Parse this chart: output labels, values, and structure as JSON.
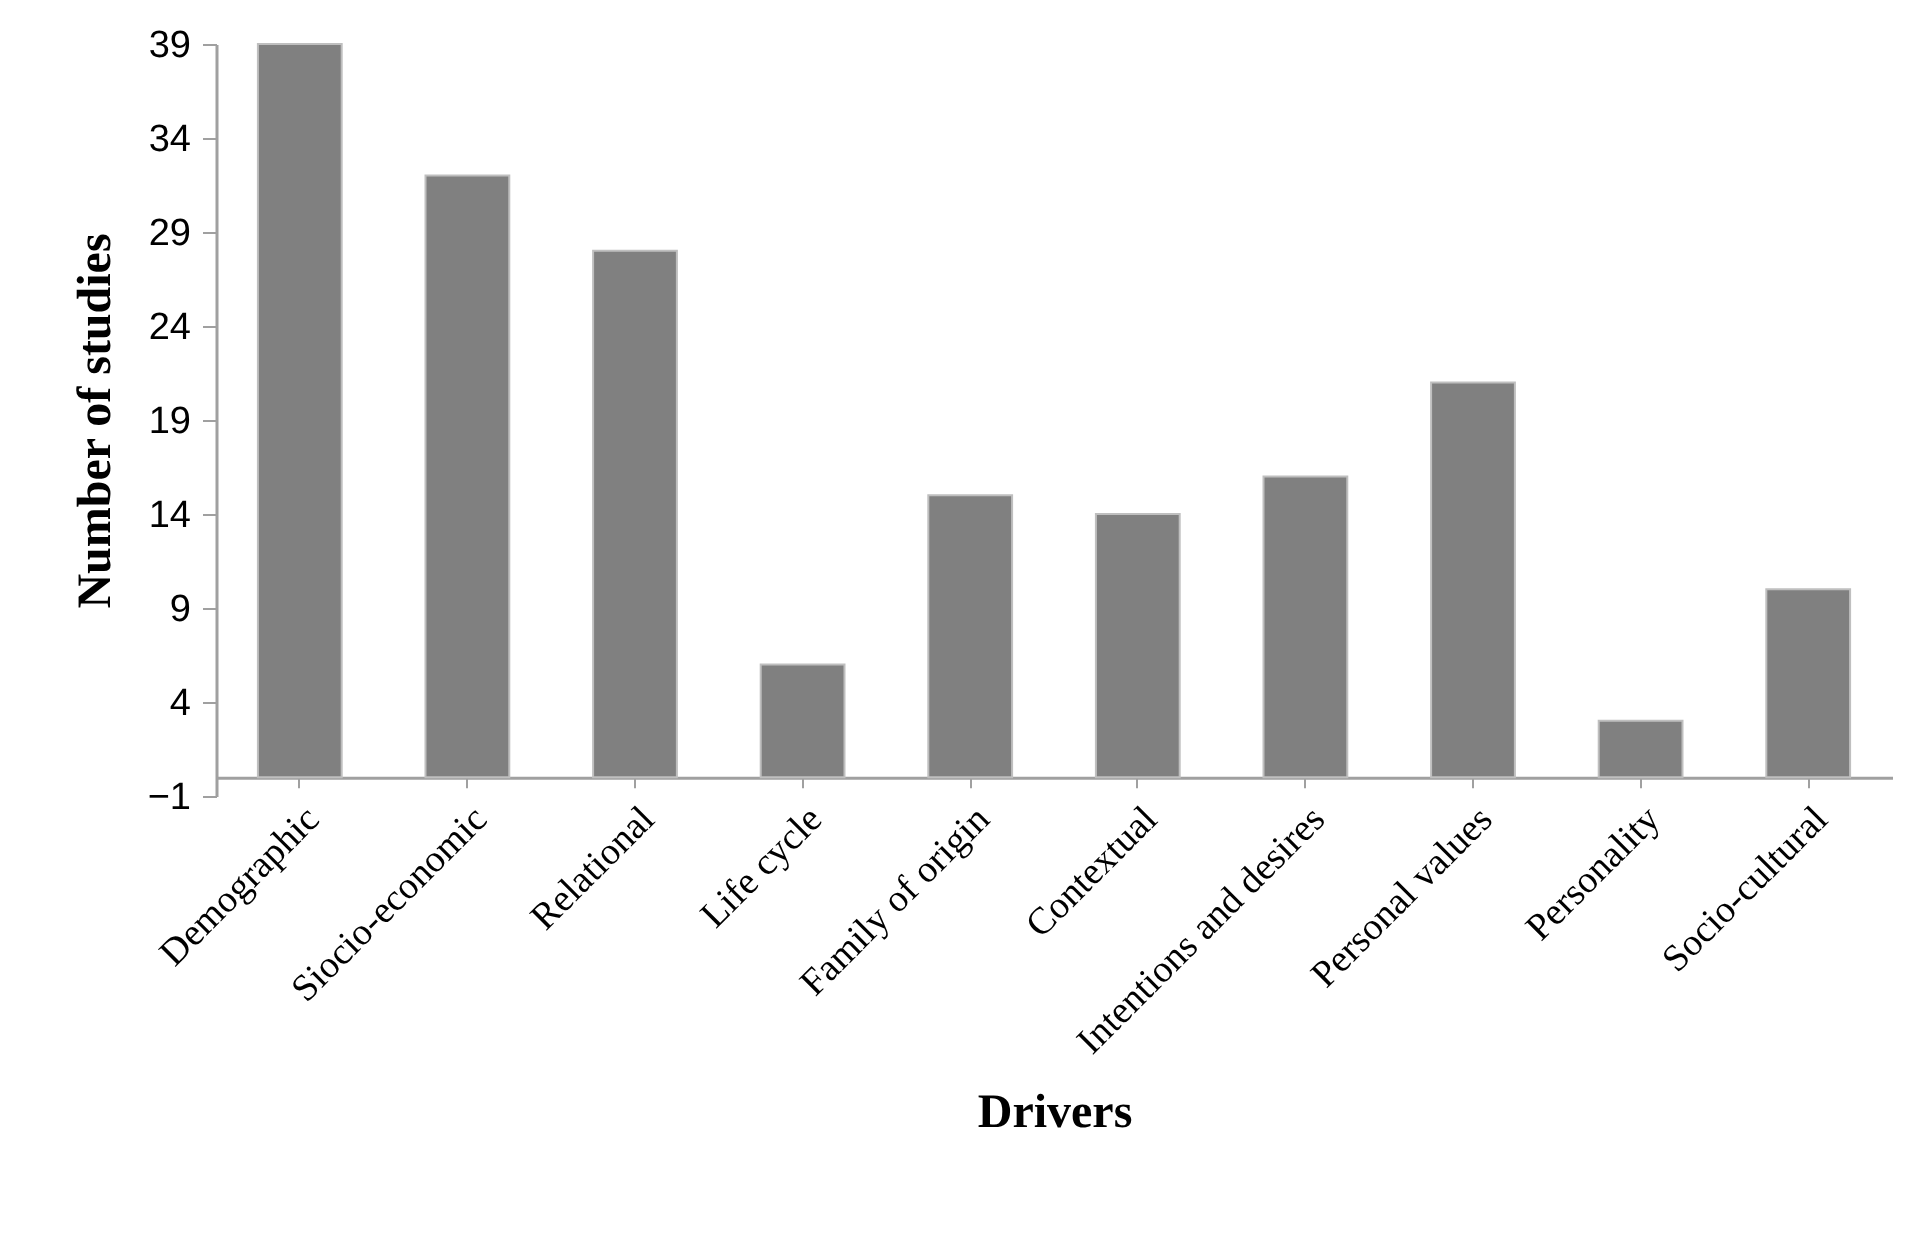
{
  "chart_data": {
    "type": "bar",
    "xlabel": "Drivers",
    "ylabel": "Number of studies",
    "categories": [
      "Demographic",
      "Siocio-economic",
      "Relational",
      "Life cycle",
      "Family of origin",
      "Contextual",
      "Intentions and desires",
      "Personal values",
      "Personality",
      "Socio-cultural"
    ],
    "values": [
      39,
      32,
      28,
      6,
      15,
      14,
      16,
      21,
      3,
      10
    ],
    "color": "#808080",
    "ylim": [
      -1,
      39
    ],
    "yticks": [
      -1,
      4,
      9,
      14,
      19,
      24,
      29,
      34,
      39
    ],
    "grid": false,
    "legend": false
  }
}
